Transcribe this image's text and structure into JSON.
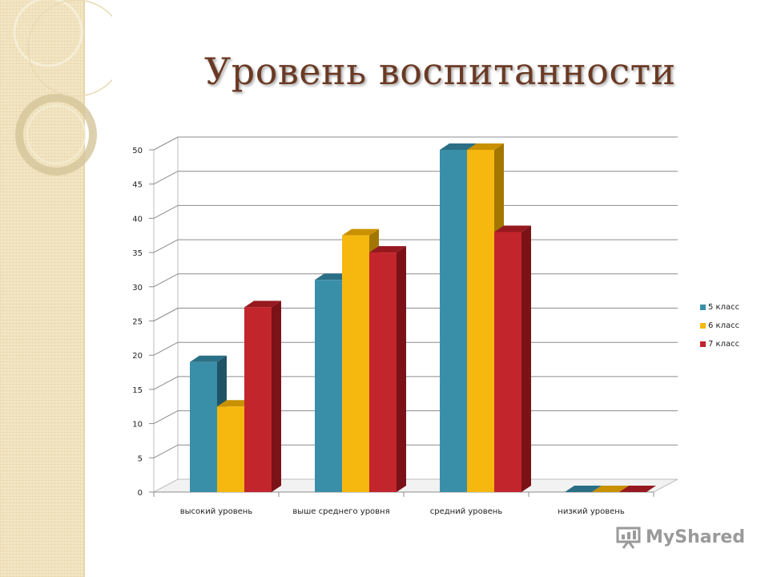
{
  "slide": {
    "title": "Уровень воспитанности",
    "watermark": "MyShared"
  },
  "legend": {
    "items": [
      {
        "label": "5 класс",
        "color": "#3a8fa8"
      },
      {
        "label": "6 класс",
        "color": "#f6b80f"
      },
      {
        "label": "7 класс",
        "color": "#c3252c"
      }
    ]
  },
  "chart_data": {
    "type": "bar",
    "categories": [
      "высокий уровень",
      "выше среднего уровня",
      "средний уровень",
      "низкий уровень"
    ],
    "series": [
      {
        "name": "5 класс",
        "values": [
          19,
          31,
          50,
          0
        ],
        "color": "#3a8fa8",
        "top_color": "#2a6f85",
        "side_color": "#1f5466"
      },
      {
        "name": "6 класс",
        "values": [
          12.5,
          37.5,
          50,
          0
        ],
        "color": "#f6b80f",
        "top_color": "#c99100",
        "side_color": "#a37600"
      },
      {
        "name": "7 класс",
        "values": [
          27,
          35,
          38,
          0
        ],
        "color": "#c3252c",
        "top_color": "#96191f",
        "side_color": "#7a1218"
      }
    ],
    "yticks": [
      0,
      5,
      10,
      15,
      20,
      25,
      30,
      35,
      40,
      45,
      50
    ],
    "ylim": [
      0,
      50
    ],
    "grid": true,
    "legend_position": "right"
  }
}
